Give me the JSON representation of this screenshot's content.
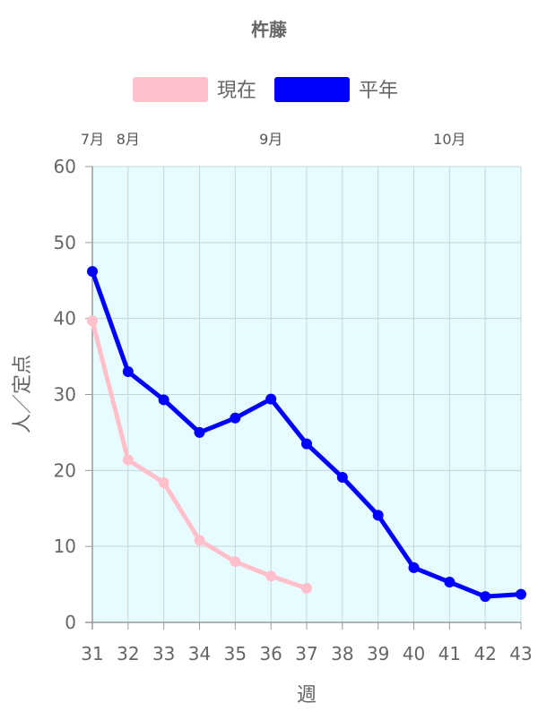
{
  "chart_data": {
    "type": "line",
    "title": "杵藤",
    "xlabel": "週",
    "ylabel": "人／定点",
    "x": [
      31,
      32,
      33,
      34,
      35,
      36,
      37,
      38,
      39,
      40,
      41,
      42,
      43
    ],
    "xlim": [
      31,
      43
    ],
    "ylim": [
      0,
      60
    ],
    "y_ticks": [
      0,
      10,
      20,
      30,
      40,
      50,
      60
    ],
    "month_labels": [
      {
        "label": "7月",
        "week": 31
      },
      {
        "label": "8月",
        "week": 32
      },
      {
        "label": "9月",
        "week": 36
      },
      {
        "label": "10月",
        "week": 41
      }
    ],
    "grid": true,
    "legend_position": "top",
    "plot_background": "#e6fcff",
    "series": [
      {
        "name": "現在",
        "color": "#ffc0cb",
        "x": [
          31,
          32,
          33,
          34,
          35,
          36,
          37
        ],
        "values": [
          39.7,
          21.4,
          18.4,
          10.8,
          8.0,
          6.1,
          4.5
        ]
      },
      {
        "name": "平年",
        "color": "#0000ff",
        "x": [
          31,
          32,
          33,
          34,
          35,
          36,
          37,
          38,
          39,
          40,
          41,
          42,
          43
        ],
        "values": [
          46.2,
          33.0,
          29.3,
          25.0,
          26.9,
          29.4,
          23.5,
          19.1,
          14.1,
          7.2,
          5.3,
          3.4,
          3.7
        ]
      }
    ]
  }
}
